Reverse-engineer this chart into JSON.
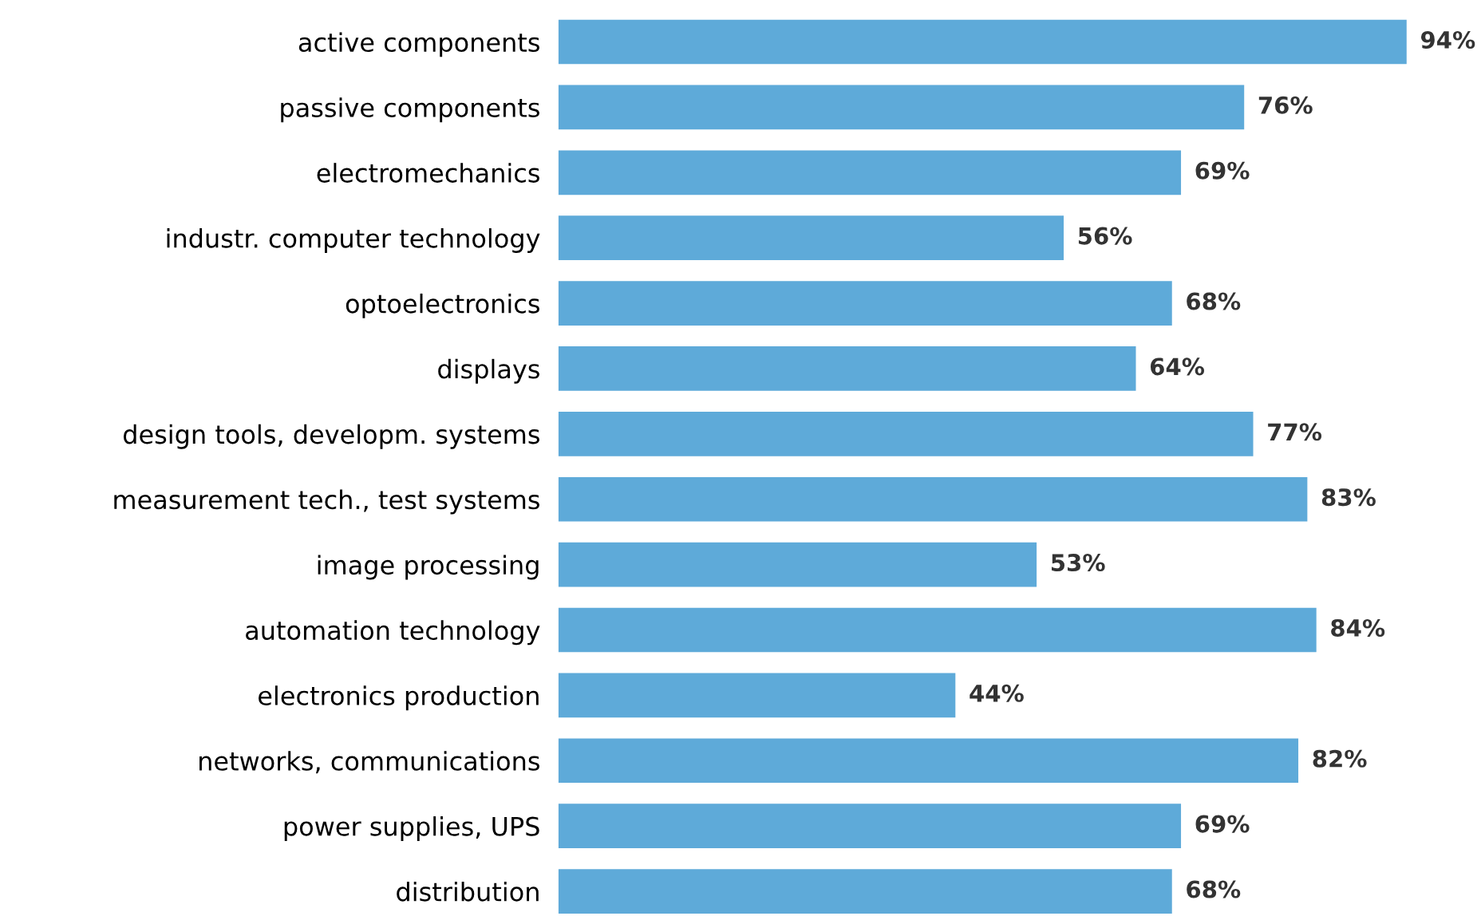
{
  "chart_data": {
    "type": "bar",
    "orientation": "horizontal",
    "categories": [
      "active components",
      "passive components",
      "electromechanics",
      "industr. computer technology",
      "optoelectronics",
      "displays",
      "design tools, developm. systems",
      "measurement tech., test systems",
      "image processing",
      "automation technology",
      "electronics production",
      "networks, communications",
      "power supplies, UPS",
      "distribution"
    ],
    "values": [
      94,
      76,
      69,
      56,
      68,
      64,
      77,
      83,
      53,
      84,
      44,
      82,
      69,
      68
    ],
    "value_labels": [
      "94%",
      "76%",
      "69%",
      "56%",
      "68%",
      "64%",
      "77%",
      "83%",
      "53%",
      "84%",
      "44%",
      "82%",
      "69%",
      "68%"
    ],
    "color": "#5eaad9",
    "tick_labels": "y",
    "grid": false
  }
}
